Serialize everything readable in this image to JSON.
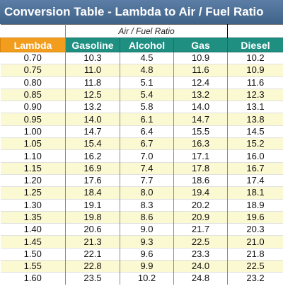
{
  "title": "Conversion Table - Lambda to Air / Fuel Ratio",
  "group_header": "Air / Fuel Ratio",
  "columns": [
    "Lambda",
    "Gasoline",
    "Alcohol",
    "Gas",
    "Diesel"
  ],
  "rows": [
    [
      "0.70",
      "10.3",
      "4.5",
      "10.9",
      "10.2"
    ],
    [
      "0.75",
      "11.0",
      "4.8",
      "11.6",
      "10.9"
    ],
    [
      "0.80",
      "11.8",
      "5.1",
      "12.4",
      "11.6"
    ],
    [
      "0.85",
      "12.5",
      "5.4",
      "13.2",
      "12.3"
    ],
    [
      "0.90",
      "13.2",
      "5.8",
      "14.0",
      "13.1"
    ],
    [
      "0.95",
      "14.0",
      "6.1",
      "14.7",
      "13.8"
    ],
    [
      "1.00",
      "14.7",
      "6.4",
      "15.5",
      "14.5"
    ],
    [
      "1.05",
      "15.4",
      "6.7",
      "16.3",
      "15.2"
    ],
    [
      "1.10",
      "16.2",
      "7.0",
      "17.1",
      "16.0"
    ],
    [
      "1.15",
      "16.9",
      "7.4",
      "17.8",
      "16.7"
    ],
    [
      "1.20",
      "17.6",
      "7.7",
      "18.6",
      "17.4"
    ],
    [
      "1.25",
      "18.4",
      "8.0",
      "19.4",
      "18.1"
    ],
    [
      "1.30",
      "19.1",
      "8.3",
      "20.2",
      "18.9"
    ],
    [
      "1.35",
      "19.8",
      "8.6",
      "20.9",
      "19.6"
    ],
    [
      "1.40",
      "20.6",
      "9.0",
      "21.7",
      "20.3"
    ],
    [
      "1.45",
      "21.3",
      "9.3",
      "22.5",
      "21.0"
    ],
    [
      "1.50",
      "22.1",
      "9.6",
      "23.3",
      "21.8"
    ],
    [
      "1.55",
      "22.8",
      "9.9",
      "24.0",
      "22.5"
    ],
    [
      "1.60",
      "23.5",
      "10.2",
      "24.8",
      "23.2"
    ]
  ],
  "colors": {
    "title_bar": "#4a6d96",
    "lambda_header": "#f29d1d",
    "fuel_header": "#1f8f82",
    "row_alt": "#fbf9d2"
  }
}
